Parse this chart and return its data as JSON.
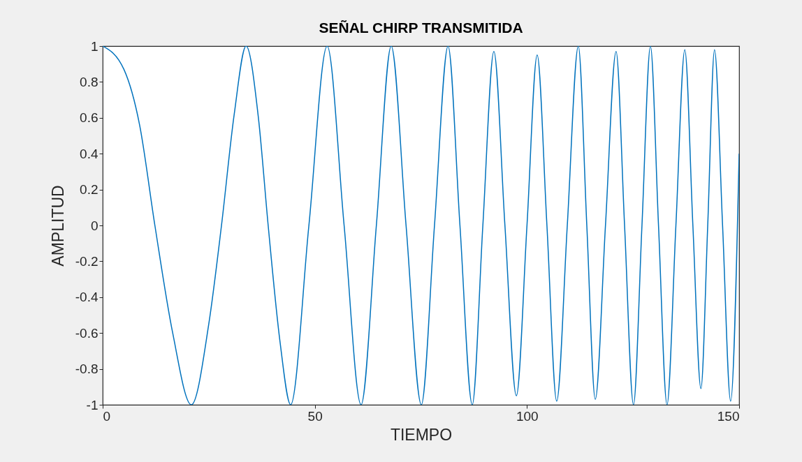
{
  "chart_data": {
    "type": "line",
    "title": "SEÑAL CHIRP TRANSMITIDA",
    "xlabel": "TIEMPO",
    "ylabel": "AMPLITUD",
    "x": [
      0,
      5,
      8.7,
      12.3,
      16.5,
      20.9,
      25,
      28,
      31,
      33.8,
      36.7,
      39,
      41.8,
      44.3,
      48.6,
      52.9,
      56.9,
      60.9,
      64.5,
      68,
      71.5,
      75.1,
      78.2,
      81.4,
      84.2,
      87.1,
      89.6,
      92.2,
      94.8,
      97.5,
      100,
      102.4,
      104.7,
      107,
      109.5,
      112.1,
      114.1,
      116.1,
      118.5,
      121,
      123,
      125.1,
      127.1,
      129.1,
      131,
      133,
      135.1,
      137.2,
      139.1,
      141,
      142.6,
      144.2,
      146.1,
      148,
      150
    ],
    "series": [
      {
        "color": "#0072bd",
        "values": [
          1,
          0.87,
          0.56,
          0,
          -0.6,
          -1,
          -0.55,
          0,
          0.62,
          1,
          0.6,
          0,
          -0.65,
          -1,
          0,
          1,
          0,
          -1,
          0,
          1,
          0,
          -1,
          0,
          1,
          0,
          -1,
          0,
          0.97,
          0,
          -0.95,
          0,
          0.95,
          0,
          -0.98,
          0,
          1,
          0,
          -0.97,
          0,
          0.97,
          0,
          -1,
          0,
          1,
          0,
          -1,
          0,
          0.98,
          0,
          -0.91,
          0,
          0.98,
          0,
          -0.98,
          0.4
        ]
      }
    ],
    "xlim": [
      0,
      150
    ],
    "xticks": [
      0,
      50,
      100,
      150
    ],
    "ylim": [
      -1,
      1
    ],
    "yticks": [
      -1,
      -0.8,
      -0.6,
      -0.4,
      -0.2,
      0,
      0.2,
      0.4,
      0.6,
      0.8,
      1
    ],
    "grid": false,
    "marker": "none",
    "line_style": "solid"
  }
}
